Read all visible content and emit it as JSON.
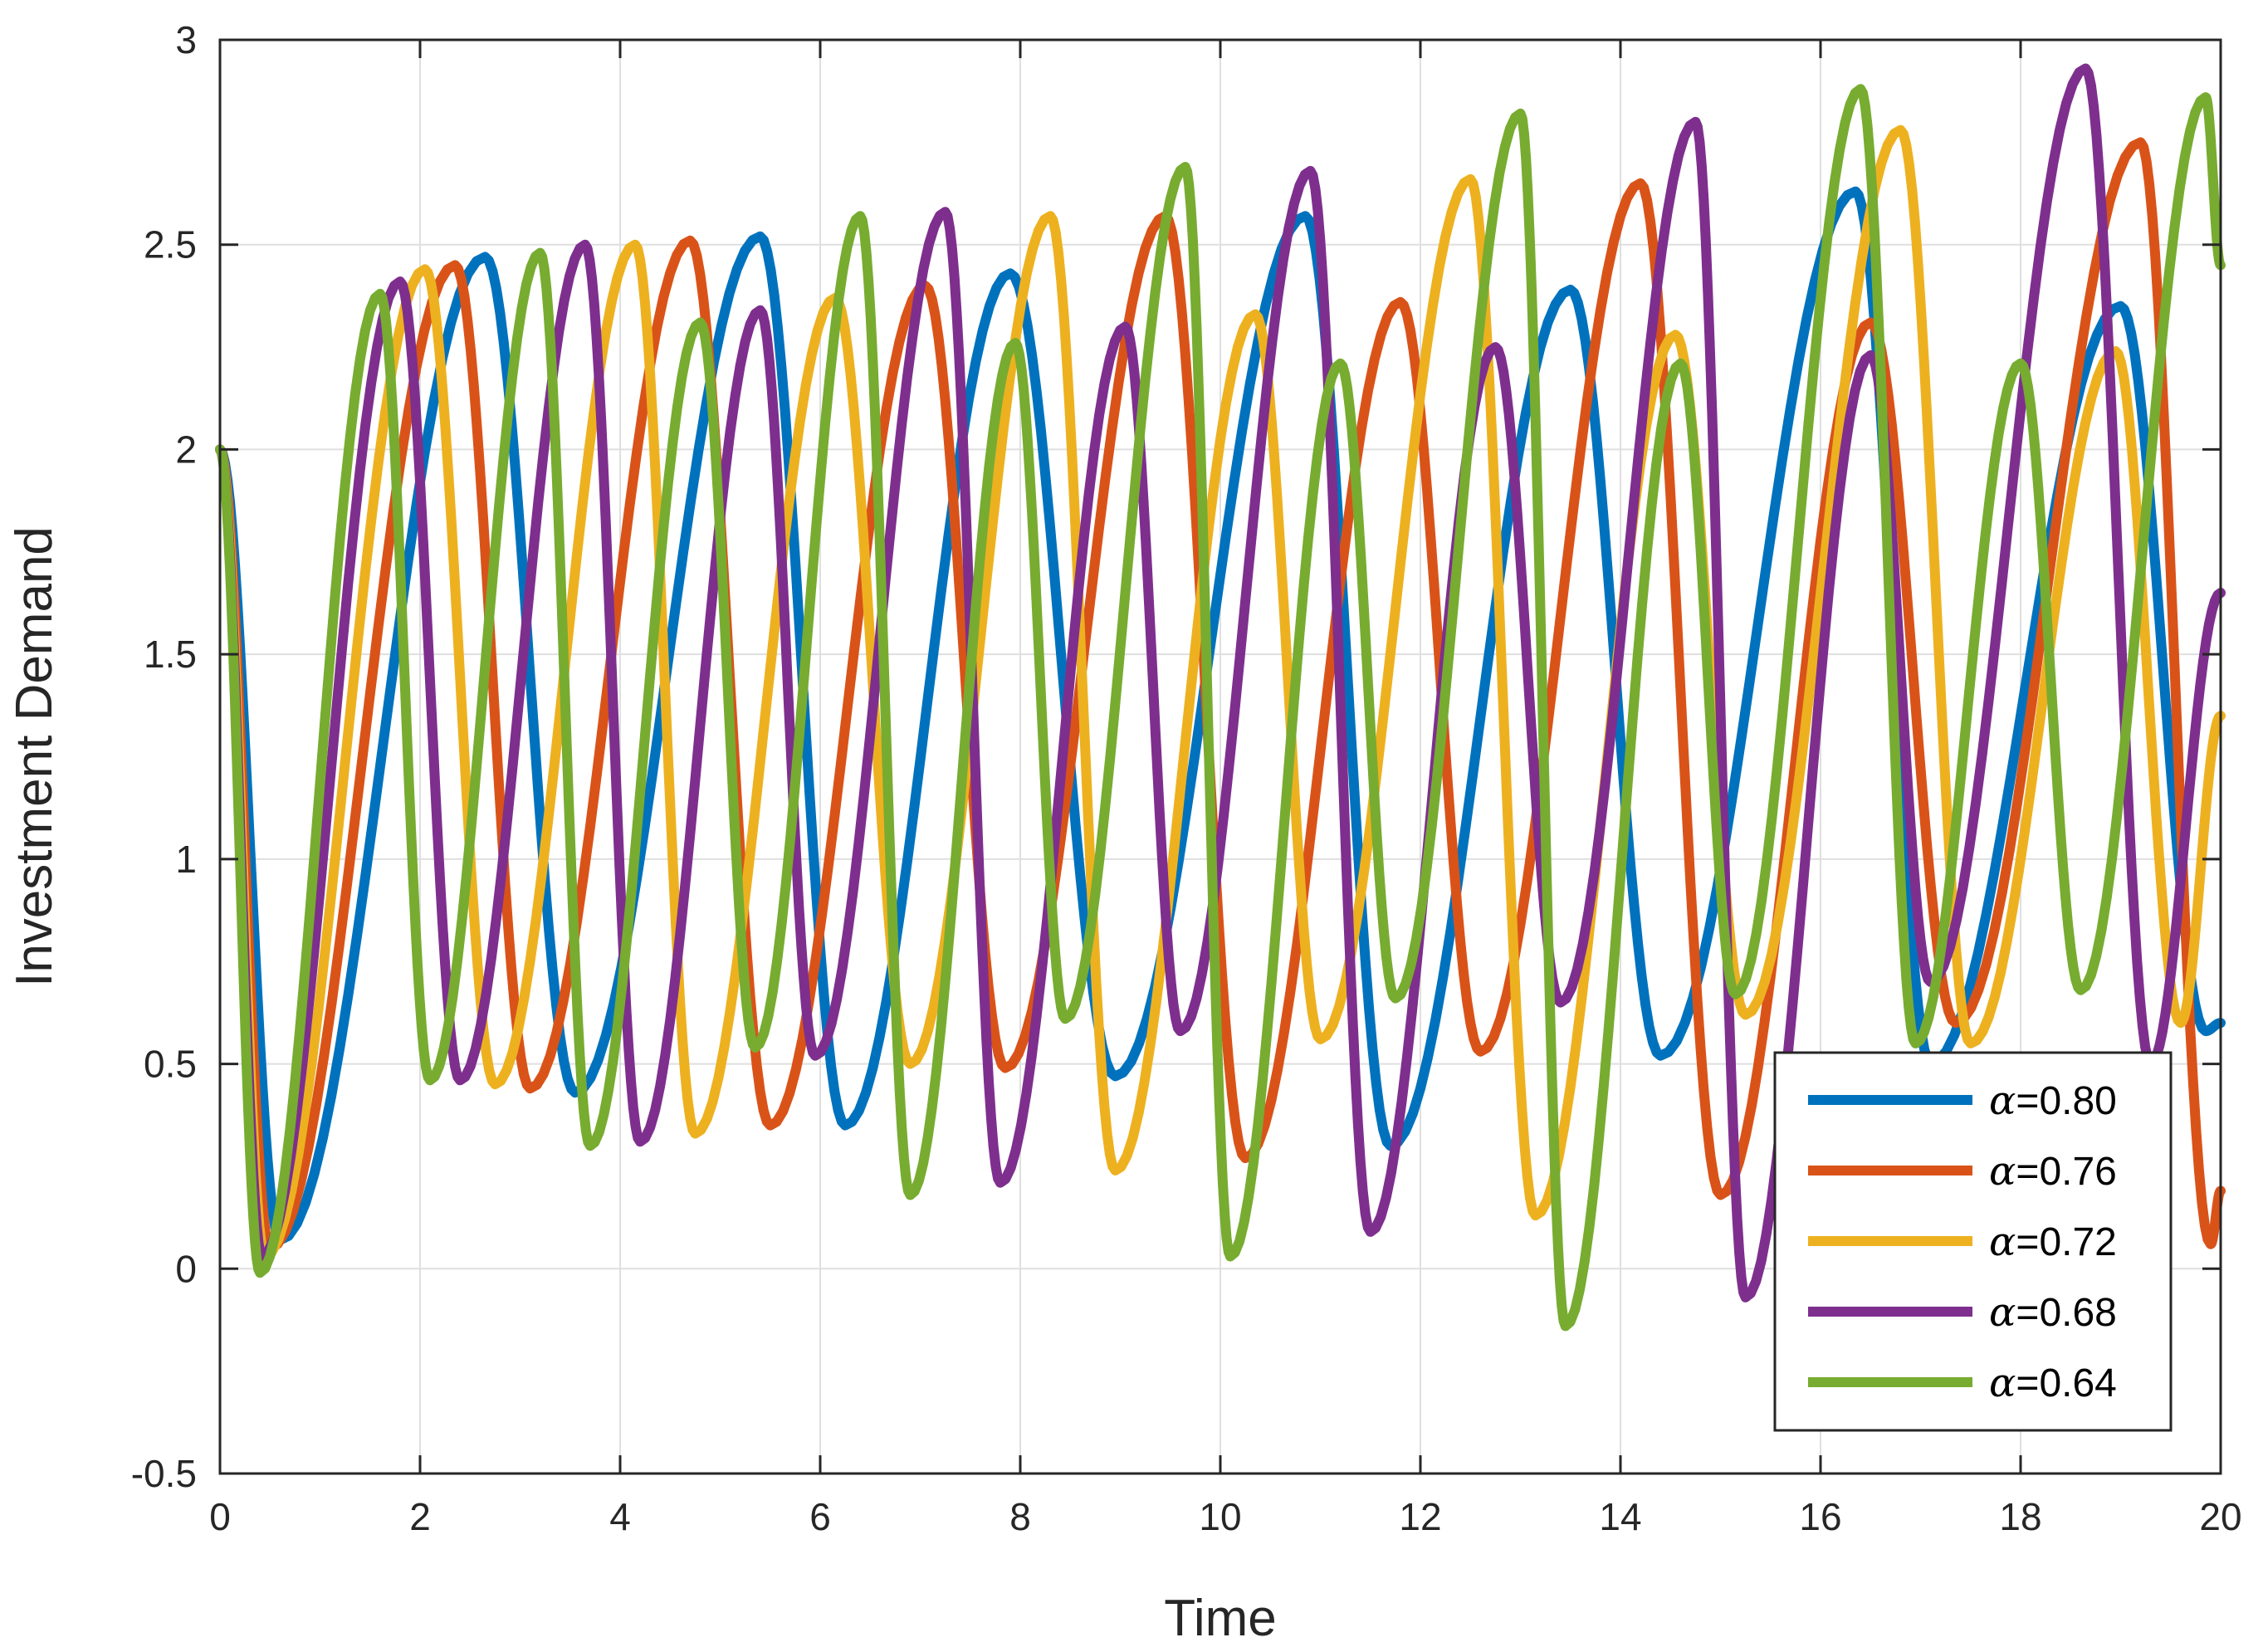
{
  "chart_data": {
    "type": "line",
    "title": "",
    "xlabel": "Time",
    "ylabel": "Investment Demand",
    "xlim": [
      0,
      20
    ],
    "ylim": [
      -0.5,
      3
    ],
    "xticks": [
      0,
      2,
      4,
      6,
      8,
      10,
      12,
      14,
      16,
      18,
      20
    ],
    "xtick_labels": [
      "0",
      "2",
      "4",
      "6",
      "8",
      "10",
      "12",
      "14",
      "16",
      "18",
      "20"
    ],
    "yticks": [
      -0.5,
      0,
      0.5,
      1,
      1.5,
      2,
      2.5,
      3
    ],
    "ytick_labels": [
      "-0.5",
      "0",
      "0.5",
      "1",
      "1.5",
      "2",
      "2.5",
      "3"
    ],
    "grid": true,
    "legend_position": "bottom-right",
    "series": [
      {
        "name": "α=0.80",
        "legend_symbol": "α",
        "legend_value": "=0.80",
        "color": "#0072BD",
        "points": [
          [
            0,
            2.0
          ],
          [
            0.6,
            0.07
          ],
          [
            2.65,
            2.47
          ],
          [
            3.55,
            0.43
          ],
          [
            5.4,
            2.52
          ],
          [
            6.25,
            0.35
          ],
          [
            7.9,
            2.43
          ],
          [
            8.95,
            0.47
          ],
          [
            10.85,
            2.57
          ],
          [
            11.7,
            0.3
          ],
          [
            13.5,
            2.39
          ],
          [
            14.4,
            0.52
          ],
          [
            16.35,
            2.63
          ],
          [
            17.1,
            0.5
          ],
          [
            19.0,
            2.35
          ],
          [
            19.85,
            0.58
          ],
          [
            20,
            0.6
          ]
        ]
      },
      {
        "name": "α=0.76",
        "legend_symbol": "α",
        "legend_value": "=0.76",
        "color": "#D95319",
        "points": [
          [
            0,
            2.0
          ],
          [
            0.5,
            0.05
          ],
          [
            2.35,
            2.45
          ],
          [
            3.1,
            0.44
          ],
          [
            4.7,
            2.51
          ],
          [
            5.5,
            0.35
          ],
          [
            7.05,
            2.4
          ],
          [
            7.85,
            0.49
          ],
          [
            9.45,
            2.57
          ],
          [
            10.25,
            0.27
          ],
          [
            11.8,
            2.36
          ],
          [
            12.6,
            0.53
          ],
          [
            14.2,
            2.65
          ],
          [
            15.0,
            0.18
          ],
          [
            16.5,
            2.31
          ],
          [
            17.35,
            0.6
          ],
          [
            19.2,
            2.75
          ],
          [
            19.9,
            0.06
          ],
          [
            20,
            0.19
          ]
        ]
      },
      {
        "name": "α=0.72",
        "legend_symbol": "α",
        "legend_value": "=0.72",
        "color": "#EDB120",
        "points": [
          [
            0,
            2.0
          ],
          [
            0.45,
            0.03
          ],
          [
            2.05,
            2.44
          ],
          [
            2.75,
            0.45
          ],
          [
            4.15,
            2.5
          ],
          [
            4.75,
            0.33
          ],
          [
            6.15,
            2.37
          ],
          [
            6.9,
            0.5
          ],
          [
            8.3,
            2.57
          ],
          [
            8.95,
            0.24
          ],
          [
            10.35,
            2.33
          ],
          [
            11.0,
            0.56
          ],
          [
            12.5,
            2.66
          ],
          [
            13.15,
            0.13
          ],
          [
            14.55,
            2.28
          ],
          [
            15.25,
            0.62
          ],
          [
            16.8,
            2.78
          ],
          [
            17.5,
            0.55
          ],
          [
            18.95,
            2.24
          ],
          [
            19.6,
            0.6
          ],
          [
            20,
            1.35
          ]
        ]
      },
      {
        "name": "α=0.68",
        "legend_symbol": "α",
        "legend_value": "=0.68",
        "color": "#7E2F8E",
        "points": [
          [
            0,
            2.0
          ],
          [
            0.42,
            0.03
          ],
          [
            1.8,
            2.41
          ],
          [
            2.4,
            0.46
          ],
          [
            3.65,
            2.5
          ],
          [
            4.2,
            0.31
          ],
          [
            5.4,
            2.34
          ],
          [
            5.95,
            0.52
          ],
          [
            7.25,
            2.58
          ],
          [
            7.8,
            0.21
          ],
          [
            9.05,
            2.3
          ],
          [
            9.6,
            0.58
          ],
          [
            10.9,
            2.68
          ],
          [
            11.5,
            0.09
          ],
          [
            12.75,
            2.25
          ],
          [
            13.4,
            0.65
          ],
          [
            14.75,
            2.8
          ],
          [
            15.25,
            -0.07
          ],
          [
            16.5,
            2.23
          ],
          [
            17.1,
            0.7
          ],
          [
            18.65,
            2.93
          ],
          [
            19.3,
            0.5
          ],
          [
            20,
            1.65
          ]
        ]
      },
      {
        "name": "α=0.64",
        "legend_symbol": "α",
        "legend_value": "=0.64",
        "color": "#77AC30",
        "points": [
          [
            0,
            2.0
          ],
          [
            0.4,
            -0.01
          ],
          [
            1.6,
            2.38
          ],
          [
            2.1,
            0.46
          ],
          [
            3.2,
            2.48
          ],
          [
            3.7,
            0.3
          ],
          [
            4.8,
            2.31
          ],
          [
            5.35,
            0.54
          ],
          [
            6.4,
            2.57
          ],
          [
            6.9,
            0.18
          ],
          [
            7.95,
            2.26
          ],
          [
            8.45,
            0.61
          ],
          [
            9.65,
            2.69
          ],
          [
            10.1,
            0.03
          ],
          [
            11.2,
            2.21
          ],
          [
            11.75,
            0.66
          ],
          [
            13.0,
            2.82
          ],
          [
            13.45,
            -0.14
          ],
          [
            14.6,
            2.21
          ],
          [
            15.15,
            0.67
          ],
          [
            16.4,
            2.88
          ],
          [
            16.95,
            0.55
          ],
          [
            18.0,
            2.21
          ],
          [
            18.6,
            0.68
          ],
          [
            19.85,
            2.86
          ],
          [
            20,
            2.45
          ]
        ]
      }
    ]
  }
}
